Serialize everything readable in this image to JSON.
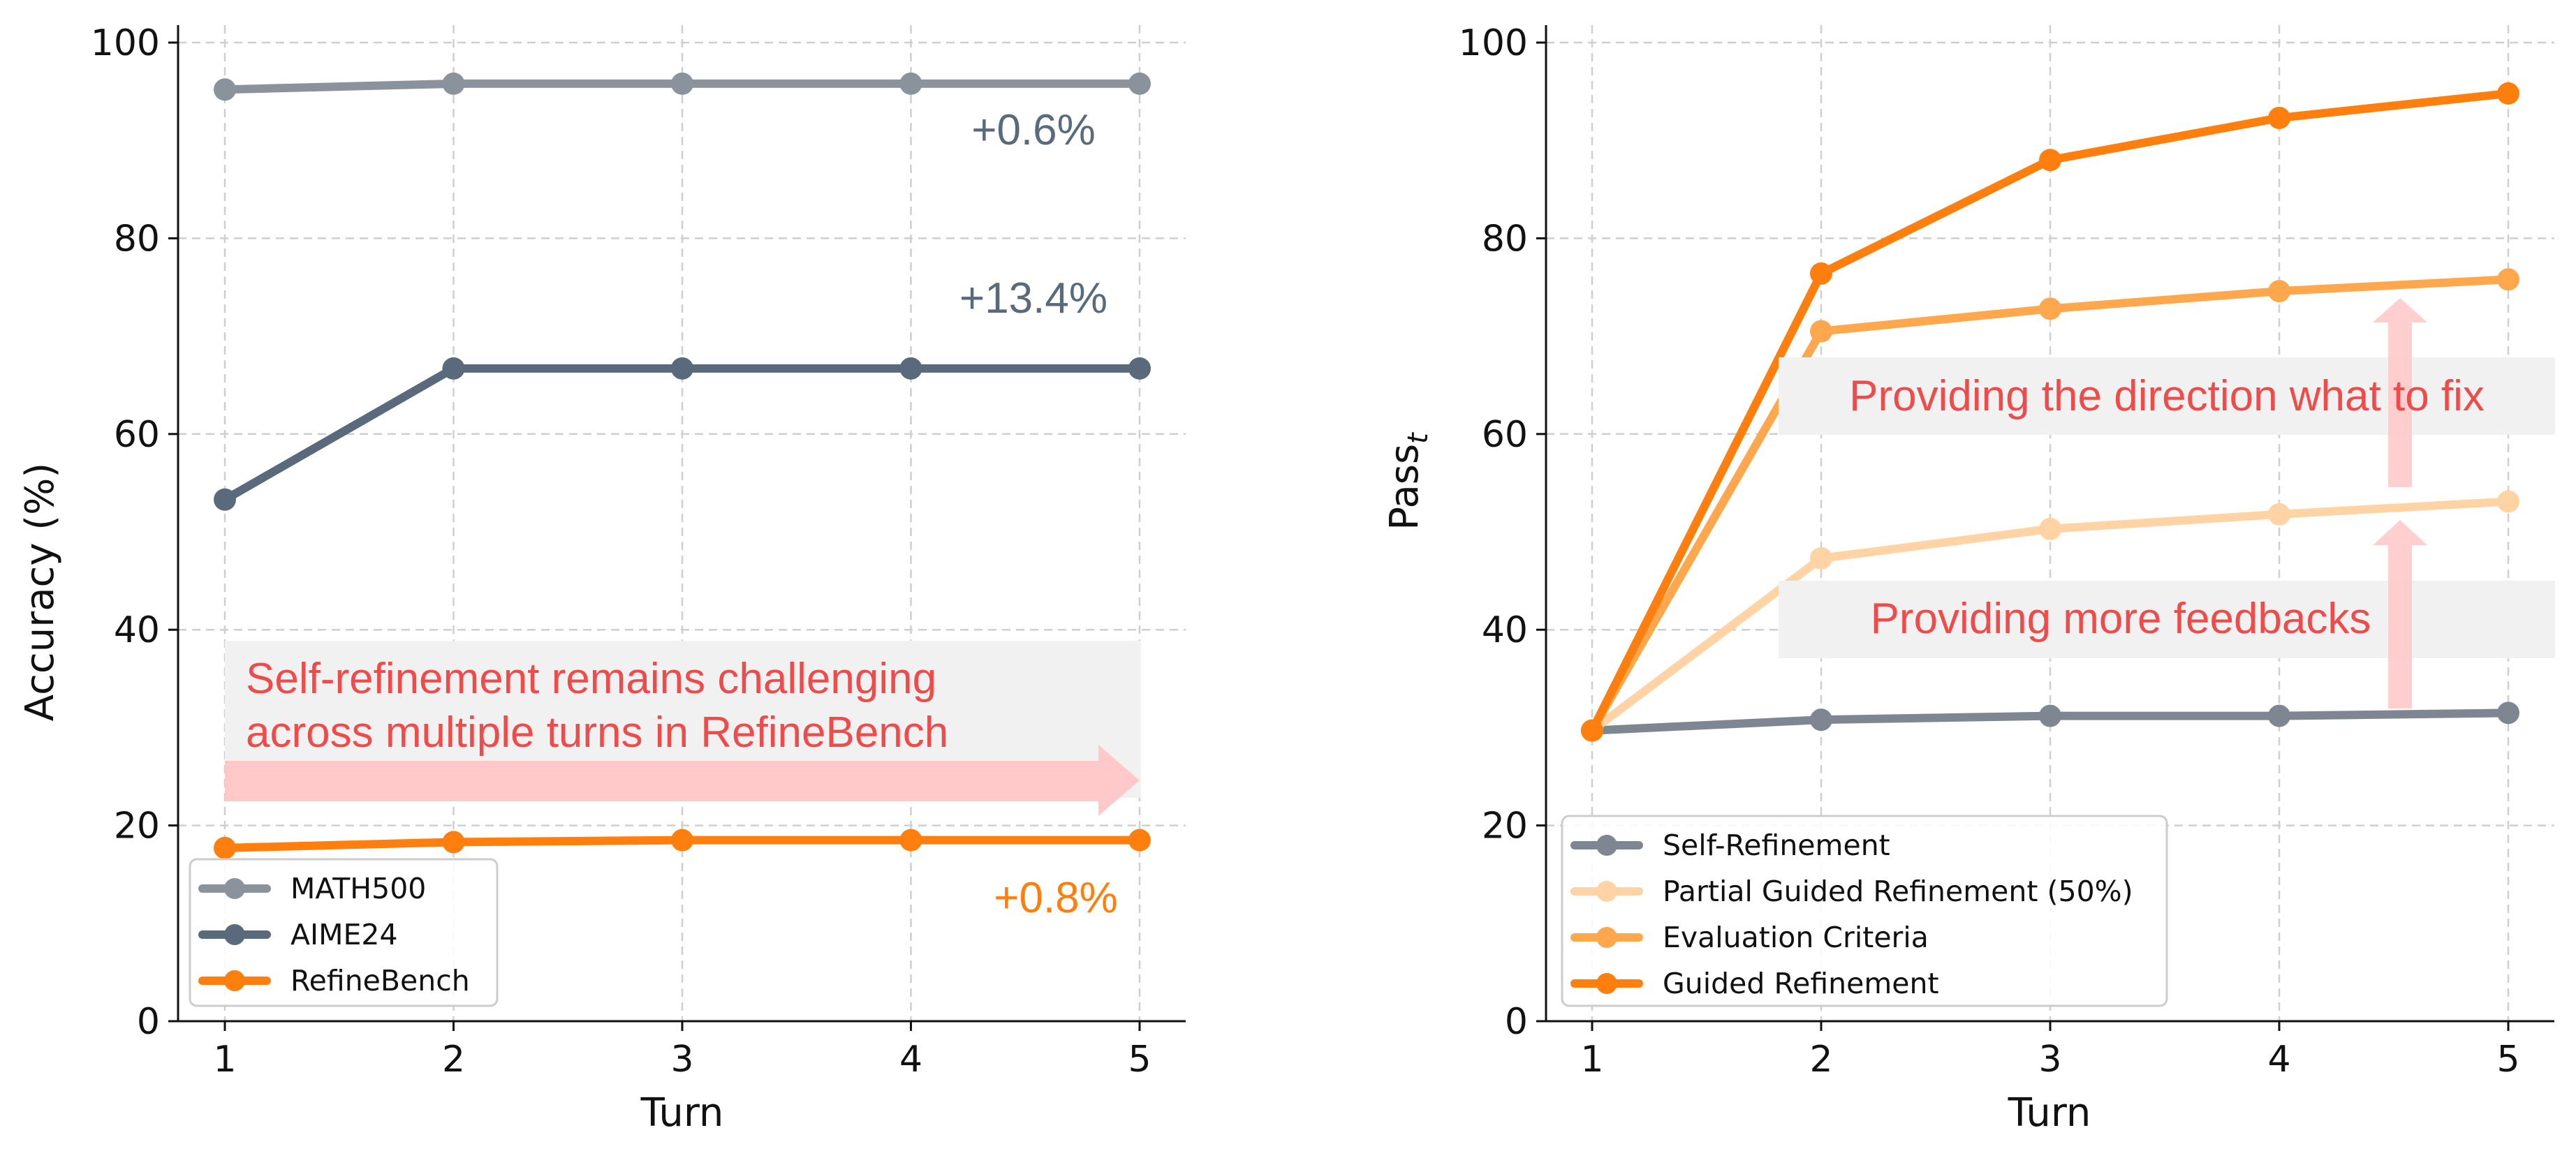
{
  "chart_data": [
    {
      "type": "line",
      "xlabel": "Turn",
      "ylabel": "Accuracy (%)",
      "x": [
        1,
        2,
        3,
        4,
        5
      ],
      "xlim": [
        0.8,
        5.2
      ],
      "ylim": [
        0,
        102
      ],
      "yticks": [
        0,
        20,
        40,
        60,
        80,
        100
      ],
      "grid": true,
      "legend_position": "lower-left",
      "series": [
        {
          "name": "MATH500",
          "color": "#8a939c",
          "values": [
            95.2,
            95.8,
            95.8,
            95.8,
            95.8
          ]
        },
        {
          "name": "AIME24",
          "color": "#586a7b",
          "values": [
            53.3,
            66.7,
            66.7,
            66.7,
            66.7
          ]
        },
        {
          "name": "RefineBench",
          "color": "#ff7f0e",
          "values": [
            17.7,
            18.3,
            18.5,
            18.5,
            18.5
          ]
        }
      ],
      "annotations": [
        {
          "text": "+0.6%",
          "color": "#586a7b"
        },
        {
          "text": "+13.4%",
          "color": "#586a7b"
        },
        {
          "text": "+0.8%",
          "color": "#ff7f0e"
        },
        {
          "text": "Self-refinement remains challenging",
          "color": "#ee4b4b"
        },
        {
          "text": "across multiple turns in RefineBench",
          "color": "#ee4b4b"
        }
      ]
    },
    {
      "type": "line",
      "xlabel": "Turn",
      "ylabel": "Pass",
      "ylabel_subscript": "t",
      "x": [
        1,
        2,
        3,
        4,
        5
      ],
      "xlim": [
        0.8,
        5.2
      ],
      "ylim": [
        0,
        102
      ],
      "yticks": [
        0,
        20,
        40,
        60,
        80,
        100
      ],
      "grid": true,
      "legend_position": "lower-left",
      "series": [
        {
          "name": "Self-Refinement",
          "color": "#7e8791",
          "values": [
            29.7,
            30.8,
            31.2,
            31.2,
            31.5
          ]
        },
        {
          "name": "Partial Guided Refinement (50%)",
          "color": "#ffd3a3",
          "values": [
            29.7,
            47.3,
            50.3,
            51.8,
            53.1
          ]
        },
        {
          "name": "Evaluation Criteria",
          "color": "#ffa74d",
          "values": [
            29.7,
            70.5,
            72.8,
            74.6,
            75.8
          ]
        },
        {
          "name": "Guided Refinement",
          "color": "#ff7f0e",
          "values": [
            29.7,
            76.4,
            88.0,
            92.3,
            94.8
          ]
        }
      ],
      "annotations": [
        {
          "text": "Providing the direction what to fix",
          "color": "#ee4b4b"
        },
        {
          "text": "Providing more feedbacks",
          "color": "#ee4b4b"
        }
      ]
    }
  ]
}
